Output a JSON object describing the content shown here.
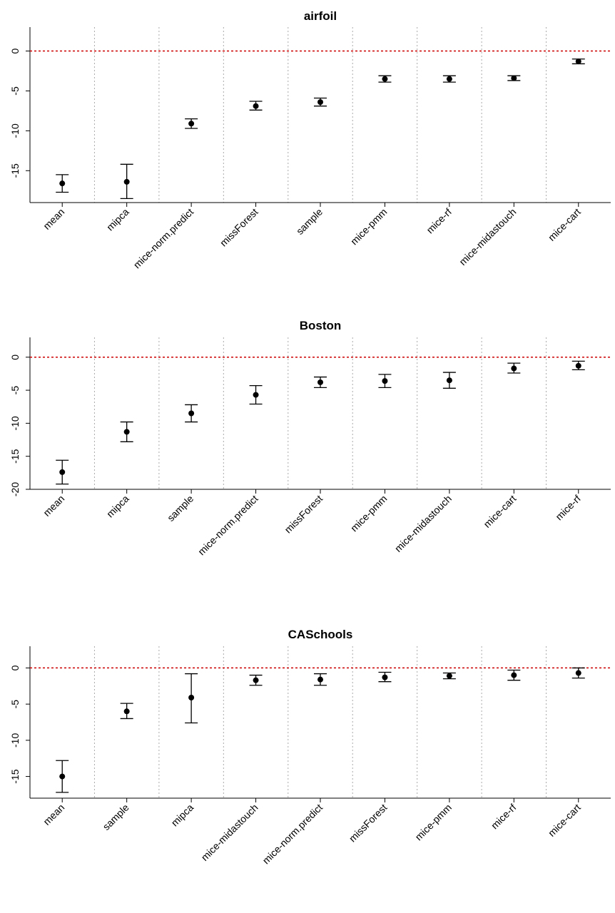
{
  "chart_data": [
    {
      "type": "scatter",
      "title": "airfoil",
      "xlabel": "",
      "ylabel": "",
      "ylim": [
        -19,
        3
      ],
      "yticks": [
        0,
        -5,
        -10,
        -15
      ],
      "reference_line": 0,
      "reference_line_color": "#cc0000",
      "grid": "vertical dotted",
      "categories": [
        "mean",
        "mipca",
        "mice-norm.predict",
        "missForest",
        "sample",
        "mice-pmm",
        "mice-rf",
        "mice-midastouch",
        "mice-cart"
      ],
      "values": [
        -16.6,
        -16.4,
        -9.1,
        -6.9,
        -6.4,
        -3.5,
        -3.5,
        -3.4,
        -1.3
      ],
      "lower": [
        -17.7,
        -18.5,
        -9.7,
        -7.4,
        -6.9,
        -3.9,
        -3.9,
        -3.7,
        -1.6
      ],
      "upper": [
        -15.5,
        -14.2,
        -8.5,
        -6.3,
        -5.9,
        -3.1,
        -3.1,
        -3.1,
        -1.0
      ]
    },
    {
      "type": "scatter",
      "title": "Boston",
      "xlabel": "",
      "ylabel": "",
      "ylim": [
        -20,
        3
      ],
      "yticks": [
        0,
        -5,
        -10,
        -15,
        -20
      ],
      "reference_line": 0,
      "reference_line_color": "#cc0000",
      "grid": "vertical dotted",
      "categories": [
        "mean",
        "mipca",
        "sample",
        "mice-norm.predict",
        "missForest",
        "mice-pmm",
        "mice-midastouch",
        "mice-cart",
        "mice-rf"
      ],
      "values": [
        -17.4,
        -11.3,
        -8.5,
        -5.7,
        -3.8,
        -3.6,
        -3.5,
        -1.7,
        -1.3
      ],
      "lower": [
        -19.2,
        -12.8,
        -9.8,
        -7.1,
        -4.6,
        -4.6,
        -4.7,
        -2.4,
        -1.9
      ],
      "upper": [
        -15.6,
        -9.8,
        -7.2,
        -4.3,
        -3.0,
        -2.6,
        -2.3,
        -0.9,
        -0.6
      ]
    },
    {
      "type": "scatter",
      "title": "CASchools",
      "xlabel": "",
      "ylabel": "",
      "ylim": [
        -18,
        3
      ],
      "yticks": [
        0,
        -5,
        -10,
        -15
      ],
      "reference_line": 0,
      "reference_line_color": "#cc0000",
      "grid": "vertical dotted",
      "categories": [
        "mean",
        "sample",
        "mipca",
        "mice-midastouch",
        "mice-norm.predict",
        "missForest",
        "mice-pmm",
        "mice-rf",
        "mice-cart"
      ],
      "values": [
        -15.0,
        -6.0,
        -4.1,
        -1.7,
        -1.6,
        -1.3,
        -1.1,
        -1.0,
        -0.7
      ],
      "lower": [
        -17.2,
        -7.0,
        -7.6,
        -2.4,
        -2.4,
        -1.9,
        -1.5,
        -1.7,
        -1.4
      ],
      "upper": [
        -12.8,
        -4.9,
        -0.8,
        -1.0,
        -0.8,
        -0.6,
        -0.7,
        -0.3,
        0.0
      ]
    }
  ]
}
